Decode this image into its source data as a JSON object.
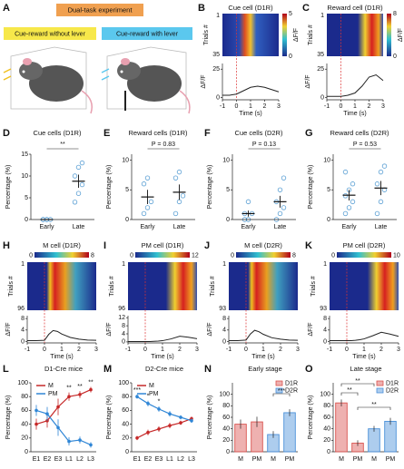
{
  "panel_a": {
    "letter": "A",
    "title": "Dual-task experiment",
    "left": "Cue-reward without lever",
    "right": "Cue-reward with lever"
  },
  "chart_data": [
    {
      "type": "heatmap",
      "letter": "B",
      "title": "Cue cell  (D1R)",
      "ylabel": "Trials #",
      "trial_ticks": [
        1,
        35
      ],
      "colorbar_ticks": [
        0,
        5
      ],
      "colorbar_label": "ΔF/F",
      "trace_ylabel": "ΔF/F",
      "trace_ylim": [
        -2,
        30
      ],
      "trace_yticks": [
        0,
        25
      ],
      "xlim": [
        -1,
        3
      ],
      "xticks": [
        -1,
        0,
        1,
        2,
        3
      ],
      "xlabel": "Time (s)",
      "x": [
        -1,
        -0.5,
        0,
        0.5,
        1,
        1.5,
        2,
        2.5,
        3
      ],
      "values": [
        2,
        2,
        3,
        6,
        9,
        10,
        9,
        7,
        5
      ]
    },
    {
      "type": "heatmap",
      "letter": "C",
      "title": "Reward cell  (D1R)",
      "ylabel": "Trials #",
      "trial_ticks": [
        1,
        35
      ],
      "colorbar_ticks": [
        0,
        8
      ],
      "colorbar_label": "ΔF/F",
      "trace_ylabel": "ΔF/F",
      "trace_ylim": [
        -2,
        30
      ],
      "trace_yticks": [
        0,
        25
      ],
      "xlim": [
        -1,
        3
      ],
      "xticks": [
        -1,
        0,
        1,
        2,
        3
      ],
      "xlabel": "Time (s)",
      "x": [
        -1,
        -0.5,
        0,
        0.5,
        1,
        1.5,
        2,
        2.5,
        3
      ],
      "values": [
        1,
        1,
        1,
        2,
        4,
        10,
        18,
        20,
        15
      ]
    },
    {
      "type": "dot",
      "letter": "D",
      "title": "Cue cells (D1R)",
      "ylabel": "Percentage (%)",
      "categories": [
        "Early",
        "Late"
      ],
      "points": [
        [
          0,
          0,
          0,
          0,
          0
        ],
        [
          4,
          6,
          8,
          10,
          12,
          13
        ]
      ],
      "mean": [
        0,
        8.8
      ],
      "sem": [
        0,
        1.5
      ],
      "ylim": [
        0,
        15
      ],
      "yticks": [
        0,
        5,
        10,
        15
      ],
      "annotation": "**"
    },
    {
      "type": "dot",
      "letter": "E",
      "title": "Reward cells (D1R)",
      "ylabel": "Percentage (%)",
      "categories": [
        "Early",
        "Late"
      ],
      "points": [
        [
          1,
          2,
          3,
          6,
          7
        ],
        [
          1,
          3,
          4,
          7,
          8
        ]
      ],
      "mean": [
        3.8,
        4.6
      ],
      "sem": [
        1.2,
        1.3
      ],
      "ylim": [
        0,
        11
      ],
      "yticks": [
        0,
        5,
        10
      ],
      "annotation": "P = 0.83"
    },
    {
      "type": "dot",
      "letter": "F",
      "title": "Cue cells (D2R)",
      "ylabel": "Percentage (%)",
      "categories": [
        "Early",
        "Late"
      ],
      "points": [
        [
          0,
          0,
          1,
          1,
          3
        ],
        [
          0,
          1,
          2,
          3,
          5,
          7
        ]
      ],
      "mean": [
        1,
        3
      ],
      "sem": [
        0.5,
        1
      ],
      "ylim": [
        0,
        11
      ],
      "yticks": [
        0,
        5,
        10
      ],
      "annotation": "P = 0.13"
    },
    {
      "type": "dot",
      "letter": "G",
      "title": "Reward cells (D2R)",
      "ylabel": "Percentage (%)",
      "categories": [
        "Early",
        "Late"
      ],
      "points": [
        [
          1,
          2,
          3,
          4,
          5,
          6,
          8
        ],
        [
          1,
          3,
          5,
          6,
          8,
          9
        ]
      ],
      "mean": [
        4.1,
        5.3
      ],
      "sem": [
        0.9,
        1.2
      ],
      "ylim": [
        0,
        11
      ],
      "yticks": [
        0,
        5,
        10
      ],
      "annotation": "P = 0.53"
    },
    {
      "type": "heatmap",
      "letter": "H",
      "title": "M cell (D1R)",
      "ylabel": "Trials #",
      "trial_ticks": [
        1,
        96
      ],
      "colorbar_ticks": [
        0,
        8
      ],
      "trace_ylabel": "ΔF/F",
      "trace_ylim": [
        -0.5,
        9
      ],
      "trace_yticks": [
        0,
        4,
        8
      ],
      "xlim": [
        -1,
        3
      ],
      "xticks": [
        -1,
        0,
        1,
        2,
        3
      ],
      "xlabel": "Time (s)",
      "x": [
        -1,
        -0.5,
        0,
        0.25,
        0.5,
        0.75,
        1,
        1.5,
        2,
        2.5,
        3
      ],
      "values": [
        0.3,
        0.3,
        0.4,
        2.5,
        3.8,
        3.5,
        2.6,
        1.4,
        0.8,
        0.5,
        0.4
      ]
    },
    {
      "type": "heatmap",
      "letter": "I",
      "title": "PM cell (D1R)",
      "ylabel": "Trials #",
      "trial_ticks": [
        1,
        96
      ],
      "colorbar_ticks": [
        0,
        12
      ],
      "trace_ylabel": "ΔF/F",
      "trace_ylim": [
        -0.5,
        13
      ],
      "trace_yticks": [
        0,
        4,
        8,
        12
      ],
      "xlim": [
        -1,
        3
      ],
      "xticks": [
        -1,
        0,
        1,
        2,
        3
      ],
      "xlabel": "Time (s)",
      "x": [
        -1,
        -0.5,
        0,
        0.25,
        0.5,
        0.75,
        1,
        1.5,
        2,
        2.5,
        3
      ],
      "values": [
        0.2,
        0.2,
        0.2,
        0.2,
        0.3,
        0.4,
        0.6,
        1.5,
        2.8,
        2.3,
        1.6
      ]
    },
    {
      "type": "heatmap",
      "letter": "J",
      "title": "M cell (D2R)",
      "ylabel": "Trials #",
      "trial_ticks": [
        1,
        93
      ],
      "colorbar_ticks": [
        0,
        8
      ],
      "trace_ylabel": "ΔF/F",
      "trace_ylim": [
        -0.5,
        9
      ],
      "trace_yticks": [
        0,
        4,
        8
      ],
      "xlim": [
        -1,
        3
      ],
      "xticks": [
        -1,
        0,
        1,
        2,
        3
      ],
      "xlabel": "Time (s)",
      "x": [
        -1,
        -0.5,
        0,
        0.25,
        0.5,
        0.75,
        1,
        1.5,
        2,
        2.5,
        3
      ],
      "values": [
        0.3,
        0.3,
        0.5,
        2.6,
        3.9,
        3.4,
        2.5,
        1.3,
        0.8,
        0.5,
        0.4
      ]
    },
    {
      "type": "heatmap",
      "letter": "K",
      "title": "PM cell (D2R)",
      "ylabel": "Trials #",
      "trial_ticks": [
        1,
        93
      ],
      "colorbar_ticks": [
        0,
        10
      ],
      "trace_ylabel": "ΔF/F",
      "trace_ylim": [
        -0.5,
        9
      ],
      "trace_yticks": [
        0,
        4,
        8
      ],
      "xlim": [
        -1,
        3
      ],
      "xticks": [
        -1,
        0,
        1,
        2,
        3
      ],
      "xlabel": "Time (s)",
      "x": [
        -1,
        -0.5,
        0,
        0.25,
        0.5,
        0.75,
        1,
        1.5,
        2,
        2.5,
        3
      ],
      "values": [
        0.3,
        0.3,
        0.3,
        0.3,
        0.4,
        0.6,
        0.9,
        2,
        3.2,
        2.6,
        1.8
      ]
    },
    {
      "type": "line",
      "letter": "L",
      "title": "D1-Cre mice",
      "ylabel": "Percentage (%)",
      "categories": [
        "E1",
        "E2",
        "E3",
        "L1",
        "L2",
        "L3"
      ],
      "series": [
        {
          "name": "M",
          "color": "#c62828",
          "values": [
            40,
            45,
            65,
            80,
            83,
            90
          ],
          "errors": [
            8,
            10,
            12,
            6,
            5,
            4
          ]
        },
        {
          "name": "PM",
          "color": "#2f86d6",
          "values": [
            60,
            55,
            35,
            15,
            17,
            10
          ],
          "errors": [
            8,
            10,
            12,
            6,
            5,
            4
          ]
        }
      ],
      "stars": [
        null,
        null,
        null,
        "**",
        "**",
        "**"
      ],
      "ylim": [
        0,
        100
      ],
      "yticks": [
        0,
        20,
        40,
        60,
        80,
        100
      ]
    },
    {
      "type": "line",
      "letter": "M",
      "title": "D2-Cre mice",
      "ylabel": "Percentage (%)",
      "categories": [
        "E1",
        "E2",
        "E3",
        "L1",
        "L2",
        "L3"
      ],
      "series": [
        {
          "name": "M",
          "color": "#c62828",
          "values": [
            20,
            28,
            33,
            38,
            42,
            48
          ],
          "errors": [
            3,
            4,
            4,
            4,
            3,
            3
          ]
        },
        {
          "name": "PM",
          "color": "#2f86d6",
          "values": [
            80,
            70,
            62,
            55,
            50,
            45
          ],
          "errors": [
            3,
            4,
            4,
            4,
            3,
            3
          ]
        }
      ],
      "stars": [
        "***",
        "*",
        "*",
        null,
        null,
        null
      ],
      "ylim": [
        0,
        100
      ],
      "yticks": [
        0,
        20,
        40,
        60,
        80,
        100
      ]
    },
    {
      "type": "bar",
      "letter": "N",
      "title": "Early stage",
      "ylabel": "Percentage (%)",
      "categories": [
        "M",
        "PM"
      ],
      "series": [
        {
          "name": "D1R",
          "color": "#d9534f",
          "values": [
            48,
            52
          ],
          "errors": [
            8,
            9
          ]
        },
        {
          "name": "D2R",
          "color": "#4a90d9",
          "values": [
            30,
            68
          ],
          "errors": [
            6,
            6
          ]
        }
      ],
      "annotations": [
        "***"
      ],
      "ylim": [
        0,
        120
      ],
      "yticks": [
        0,
        20,
        40,
        60,
        80,
        100
      ]
    },
    {
      "type": "bar",
      "letter": "O",
      "title": "Late stage",
      "ylabel": "Percentage (%)",
      "categories": [
        "M",
        "PM"
      ],
      "series": [
        {
          "name": "D1R",
          "color": "#d9534f",
          "values": [
            85,
            15
          ],
          "errors": [
            6,
            5
          ]
        },
        {
          "name": "D2R",
          "color": "#4a90d9",
          "values": [
            40,
            53
          ],
          "errors": [
            5,
            6
          ]
        }
      ],
      "annotations": [
        "**",
        "**",
        "**"
      ],
      "ylim": [
        0,
        120
      ],
      "yticks": [
        0,
        20,
        40,
        60,
        80,
        100
      ]
    }
  ]
}
